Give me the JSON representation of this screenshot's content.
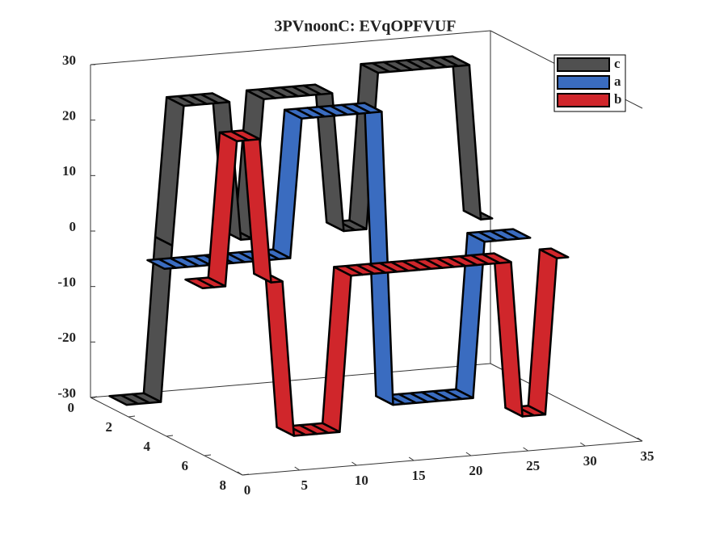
{
  "chart_data": {
    "type": "ribbon3d",
    "title": "3PVnoonC: EVqOPFVUF",
    "x": [
      0,
      1,
      2,
      3,
      4,
      5,
      6,
      7,
      8,
      9,
      10,
      11,
      12,
      13,
      14,
      15,
      16,
      17,
      18,
      19,
      20,
      21,
      22,
      23,
      24,
      25,
      26,
      27,
      28,
      29,
      30,
      31,
      32
    ],
    "series": [
      {
        "name": "c",
        "color": "#505050",
        "depth": 1,
        "values": [
          -28,
          -28,
          -28,
          -28,
          0,
          25,
          25,
          25,
          25,
          25,
          0,
          0,
          25,
          25,
          25,
          25,
          25,
          25,
          25,
          0,
          0,
          0,
          28,
          28,
          28,
          28,
          28,
          28,
          28,
          28,
          28,
          0,
          0
        ]
      },
      {
        "name": "a",
        "color": "#3a6cc0",
        "depth": 3,
        "values": [
          0,
          0,
          0,
          0,
          0,
          0,
          0,
          0,
          0,
          0,
          0,
          0,
          25,
          25,
          25,
          25,
          25,
          25,
          25,
          25,
          -28,
          -28,
          -28,
          -28,
          -28,
          -28,
          -28,
          -28,
          0,
          0,
          0,
          0,
          0
        ]
      },
      {
        "name": "b",
        "color": "#d0262b",
        "depth": 5,
        "values": [
          0,
          0,
          0,
          26,
          26,
          26,
          0,
          0,
          -28,
          -28,
          -28,
          -28,
          -28,
          0,
          0,
          0,
          0,
          0,
          0,
          0,
          0,
          0,
          0,
          0,
          0,
          0,
          0,
          0,
          -28,
          -28,
          -28,
          0,
          0
        ]
      }
    ],
    "xlim": [
      0,
      35
    ],
    "xticks": [
      0,
      5,
      10,
      15,
      20,
      25,
      30,
      35
    ],
    "ylim": [
      0,
      8
    ],
    "yticks": [
      0,
      2,
      4,
      6,
      8
    ],
    "zlim": [
      -30,
      30
    ],
    "zticks": [
      -30,
      -20,
      -10,
      0,
      10,
      20,
      30
    ],
    "legend": "top-right",
    "grid": false
  }
}
